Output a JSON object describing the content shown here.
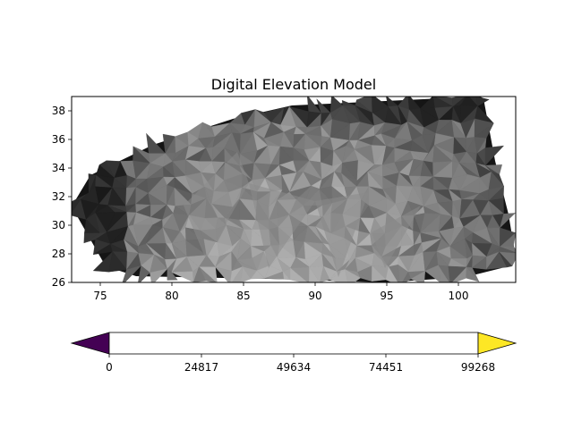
{
  "chart_data": {
    "type": "heatmap",
    "title": "Digital Elevation Model",
    "xlabel": "",
    "ylabel": "",
    "xlim": [
      73,
      104
    ],
    "ylim": [
      26,
      39
    ],
    "x_ticks": [
      75,
      80,
      85,
      90,
      95,
      100
    ],
    "y_ticks": [
      26,
      28,
      30,
      32,
      34,
      36,
      38
    ],
    "colormap": "gray",
    "surface": "triangulated elevation surface",
    "colorbar": {
      "orientation": "horizontal",
      "ticks": [
        0,
        24817,
        49634,
        74451,
        99268
      ],
      "range": [
        0,
        99268
      ],
      "under_color": "#440154",
      "over_color": "#fde725",
      "fill_color": "#ffffff",
      "extend": "both"
    }
  }
}
